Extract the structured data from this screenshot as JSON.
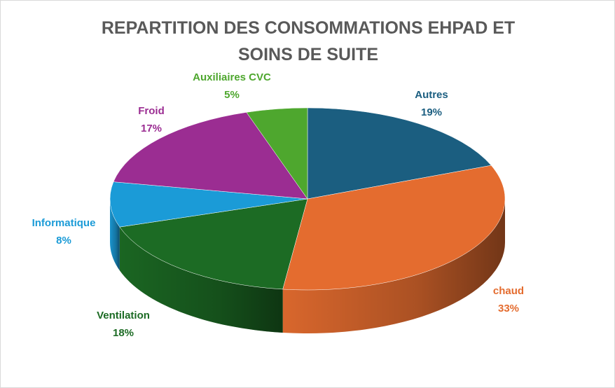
{
  "chart_data": {
    "type": "pie",
    "title": "REPARTITION DES CONSOMMATIONS EHPAD ET SOINS DE SUITE",
    "categories": [
      "Autres",
      "chaud",
      "Ventilation",
      "Informatique",
      "Froid",
      "Auxiliaires CVC"
    ],
    "values": [
      19,
      33,
      18,
      8,
      17,
      5
    ],
    "value_labels": [
      "19%",
      "33%",
      "18%",
      "8%",
      "17%",
      "5%"
    ],
    "colors": [
      "#1b5e80",
      "#e46c2f",
      "#1c6b24",
      "#1b9bd7",
      "#9b2d92",
      "#4ea72e"
    ]
  }
}
